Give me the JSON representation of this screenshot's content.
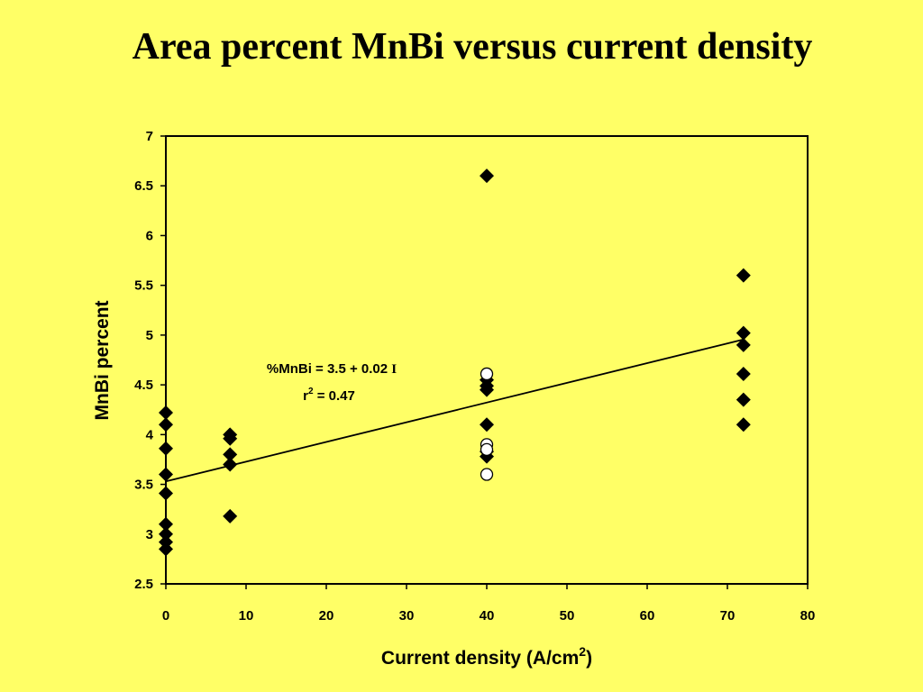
{
  "chart_data": {
    "type": "scatter",
    "title": "Area percent MnBi versus current density",
    "xlabel": "Current density (A/cm",
    "xlabel_sup": "2",
    "xlabel_end": ")",
    "ylabel": "MnBi percent",
    "xlim": [
      0,
      80
    ],
    "ylim": [
      2.5,
      7
    ],
    "xticks": [
      0,
      10,
      20,
      30,
      40,
      50,
      60,
      70,
      80
    ],
    "yticks": [
      "2.5",
      "3",
      "3.5",
      "4",
      "4.5",
      "5",
      "5.5",
      "6",
      "6.5",
      "7"
    ],
    "grid": false,
    "series": [
      {
        "marker": "diamond",
        "color": "#000000",
        "points": [
          [
            0,
            4.22
          ],
          [
            0,
            4.1
          ],
          [
            0,
            3.86
          ],
          [
            0,
            3.6
          ],
          [
            0,
            3.41
          ],
          [
            0,
            3.1
          ],
          [
            0,
            3.0
          ],
          [
            0,
            2.92
          ],
          [
            0,
            2.85
          ],
          [
            8,
            4.0
          ],
          [
            8,
            3.96
          ],
          [
            8,
            3.8
          ],
          [
            8,
            3.7
          ],
          [
            8,
            3.18
          ],
          [
            40,
            6.6
          ],
          [
            40,
            4.55
          ],
          [
            40,
            4.49
          ],
          [
            40,
            4.45
          ],
          [
            40,
            4.1
          ],
          [
            40,
            3.83
          ],
          [
            40,
            3.78
          ],
          [
            72,
            5.6
          ],
          [
            72,
            5.02
          ],
          [
            72,
            4.9
          ],
          [
            72,
            4.61
          ],
          [
            72,
            4.35
          ],
          [
            72,
            4.1
          ]
        ]
      },
      {
        "marker": "circle-open",
        "color": "#000000",
        "points": [
          [
            40,
            4.61
          ],
          [
            40,
            3.9
          ],
          [
            40,
            3.85
          ],
          [
            40,
            3.6
          ]
        ]
      }
    ],
    "trendline": {
      "intercept": 3.53,
      "slope": 0.0198,
      "x_range": [
        0,
        72
      ]
    },
    "annotation": {
      "line1": "%MnBi = 3.5 + 0.02 ",
      "line1_italic": "I",
      "line2_a": "r",
      "line2_sup": "2",
      "line2_b": " = 0.47"
    }
  }
}
